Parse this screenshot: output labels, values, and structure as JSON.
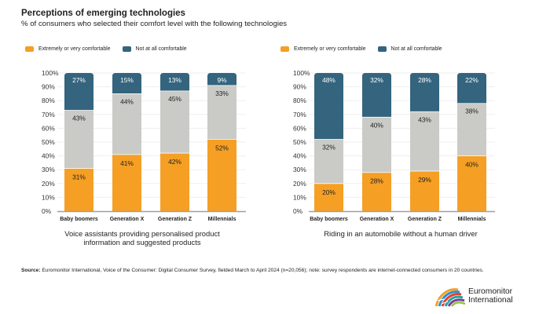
{
  "header": {
    "title": "Perceptions of emerging technologies",
    "subtitle": "% of consumers who selected their comfort level with the following technologies"
  },
  "colors": {
    "comfortable": "#F59F25",
    "middle": "#CACAC6",
    "not_comfortable": "#34647E",
    "grid": "#EFEFEF",
    "axis": "#A0A0A0"
  },
  "legend": {
    "comfortable_label": "Extremely or very comfortable",
    "not_comfortable_label": "Not at all comfortable"
  },
  "chart_data": [
    {
      "type": "bar",
      "stacked": true,
      "title": "Voice assistants providing personalised product information and suggested products",
      "title_lines": [
        "Voice assistants providing personalised product",
        "information and suggested products"
      ],
      "categories": [
        "Baby boomers",
        "Generation X",
        "Generation Z",
        "Millennials"
      ],
      "series": [
        {
          "name": "Extremely or very comfortable",
          "key": "comfortable",
          "values": [
            31,
            41,
            42,
            52
          ]
        },
        {
          "name": "",
          "key": "middle",
          "values": [
            43,
            44,
            45,
            33
          ]
        },
        {
          "name": "Not at all comfortable",
          "key": "not_comfortable",
          "values": [
            27,
            15,
            13,
            9
          ]
        }
      ],
      "yticks": [
        "0%",
        "10%",
        "20%",
        "30%",
        "40%",
        "50%",
        "60%",
        "70%",
        "80%",
        "90%",
        "100%"
      ],
      "ylim": [
        0,
        100
      ],
      "xlabel": "",
      "ylabel": "",
      "grid": true,
      "legend_position": "top-left"
    },
    {
      "type": "bar",
      "stacked": true,
      "title": "Riding in an automobile without a human driver",
      "title_lines": [
        "Riding in an automobile without a human driver"
      ],
      "categories": [
        "Baby boomers",
        "Generation X",
        "Generation Z",
        "Millennials"
      ],
      "series": [
        {
          "name": "Extremely or very comfortable",
          "key": "comfortable",
          "values": [
            20,
            28,
            29,
            40
          ]
        },
        {
          "name": "",
          "key": "middle",
          "values": [
            32,
            40,
            43,
            38
          ]
        },
        {
          "name": "Not at all comfortable",
          "key": "not_comfortable",
          "values": [
            48,
            32,
            28,
            22
          ]
        }
      ],
      "yticks": [
        "0%",
        "10%",
        "20%",
        "30%",
        "40%",
        "50%",
        "60%",
        "70%",
        "80%",
        "90%",
        "100%"
      ],
      "ylim": [
        0,
        100
      ],
      "xlabel": "",
      "ylabel": "",
      "grid": true,
      "legend_position": "top-left"
    }
  ],
  "footer": {
    "source_label": "Source:",
    "source_text": " Euromonitor International, Voice of the Consumer: Digital Consumer Survey, fielded March to April 2024 (n=20,056); note: survey respondents are internet-connected consumers in 20 countries.",
    "logo_line1": "Euromonitor",
    "logo_line2": "International"
  }
}
